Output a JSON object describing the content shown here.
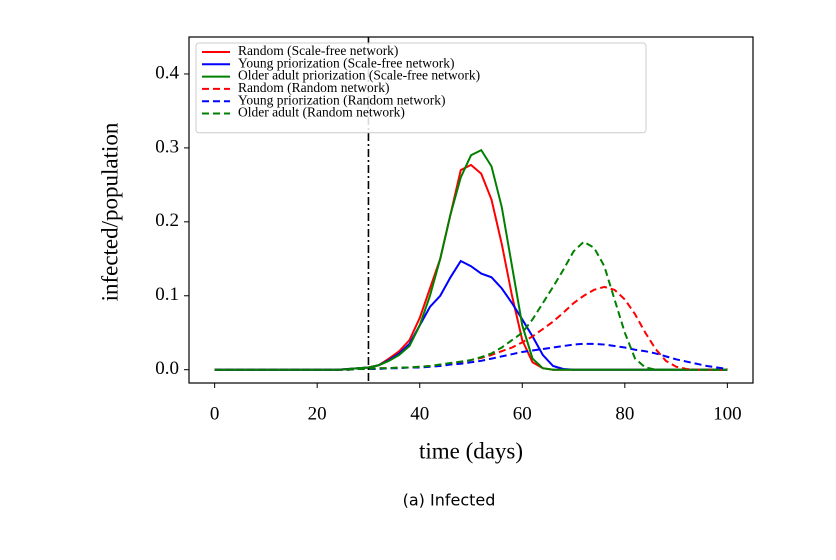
{
  "chart_data": {
    "type": "line",
    "caption": "(a) Infected",
    "xlabel": "time (days)",
    "ylabel": "infected/population",
    "x": [
      0,
      2,
      4,
      6,
      8,
      10,
      12,
      14,
      16,
      18,
      20,
      22,
      24,
      26,
      28,
      30,
      32,
      34,
      36,
      38,
      40,
      42,
      44,
      46,
      48,
      50,
      52,
      54,
      56,
      58,
      60,
      62,
      64,
      66,
      68,
      70,
      72,
      74,
      76,
      78,
      80,
      82,
      84,
      86,
      88,
      90,
      92,
      94,
      96,
      98,
      100
    ],
    "series": [
      {
        "name": "Random (Scale-free network)",
        "color": "#ff0000",
        "linestyle": "solid",
        "values": [
          0,
          0,
          0,
          0,
          0,
          0,
          0,
          0,
          0,
          0,
          0,
          0,
          0,
          0.001,
          0.002,
          0.003,
          0.006,
          0.015,
          0.025,
          0.04,
          0.07,
          0.11,
          0.15,
          0.21,
          0.27,
          0.277,
          0.265,
          0.23,
          0.17,
          0.1,
          0.04,
          0.01,
          0.002,
          0,
          0,
          0,
          0,
          0,
          0,
          0,
          0,
          0,
          0,
          0,
          0,
          0,
          0,
          0,
          0,
          0,
          0
        ]
      },
      {
        "name": "Young priorization (Scale-free network)",
        "color": "#0000ff",
        "linestyle": "solid",
        "values": [
          0,
          0,
          0,
          0,
          0,
          0,
          0,
          0,
          0,
          0,
          0,
          0,
          0,
          0.001,
          0.002,
          0.003,
          0.006,
          0.013,
          0.022,
          0.035,
          0.06,
          0.085,
          0.1,
          0.125,
          0.147,
          0.14,
          0.13,
          0.125,
          0.11,
          0.09,
          0.068,
          0.045,
          0.02,
          0.005,
          0.001,
          0,
          0,
          0,
          0,
          0,
          0,
          0,
          0,
          0,
          0,
          0,
          0,
          0,
          0,
          0,
          0
        ]
      },
      {
        "name": "Older adult priorization (Scale-free network)",
        "color": "#008000",
        "linestyle": "solid",
        "values": [
          0,
          0,
          0,
          0,
          0,
          0,
          0,
          0,
          0,
          0,
          0,
          0,
          0,
          0.001,
          0.002,
          0.003,
          0.006,
          0.012,
          0.02,
          0.032,
          0.06,
          0.1,
          0.15,
          0.21,
          0.26,
          0.29,
          0.297,
          0.275,
          0.22,
          0.14,
          0.06,
          0.015,
          0.002,
          0,
          0,
          0,
          0,
          0,
          0,
          0,
          0,
          0,
          0,
          0,
          0,
          0,
          0,
          0,
          0,
          0,
          0
        ]
      },
      {
        "name": "Random (Random network)",
        "color": "#ff0000",
        "linestyle": "dashed",
        "values": [
          0,
          0,
          0,
          0,
          0,
          0,
          0,
          0,
          0,
          0,
          0,
          0,
          0,
          0,
          0.001,
          0.001,
          0.002,
          0.002,
          0.003,
          0.003,
          0.004,
          0.005,
          0.006,
          0.008,
          0.01,
          0.013,
          0.016,
          0.02,
          0.025,
          0.03,
          0.037,
          0.045,
          0.055,
          0.065,
          0.077,
          0.09,
          0.1,
          0.108,
          0.112,
          0.108,
          0.095,
          0.075,
          0.05,
          0.028,
          0.012,
          0.004,
          0.001,
          0,
          0,
          0,
          0
        ]
      },
      {
        "name": "Young priorization (Random network)",
        "color": "#0000ff",
        "linestyle": "dashed",
        "values": [
          0,
          0,
          0,
          0,
          0,
          0,
          0,
          0,
          0,
          0,
          0,
          0,
          0,
          0,
          0.001,
          0.001,
          0.001,
          0.002,
          0.002,
          0.003,
          0.003,
          0.004,
          0.005,
          0.007,
          0.008,
          0.01,
          0.012,
          0.015,
          0.018,
          0.021,
          0.024,
          0.026,
          0.028,
          0.03,
          0.032,
          0.034,
          0.035,
          0.035,
          0.034,
          0.032,
          0.03,
          0.027,
          0.025,
          0.022,
          0.018,
          0.014,
          0.011,
          0.008,
          0.005,
          0.003,
          0.001
        ]
      },
      {
        "name": "Older adult (Random network)",
        "color": "#008000",
        "linestyle": "dashed",
        "values": [
          0,
          0,
          0,
          0,
          0,
          0,
          0,
          0,
          0,
          0,
          0,
          0,
          0,
          0,
          0.001,
          0.001,
          0.002,
          0.002,
          0.003,
          0.003,
          0.004,
          0.005,
          0.007,
          0.009,
          0.011,
          0.013,
          0.017,
          0.022,
          0.03,
          0.04,
          0.05,
          0.068,
          0.09,
          0.112,
          0.135,
          0.16,
          0.173,
          0.165,
          0.14,
          0.095,
          0.05,
          0.015,
          0.003,
          0,
          0,
          0,
          0,
          0,
          0,
          0,
          0
        ]
      }
    ],
    "vline": 30,
    "xlim": [
      -5,
      105
    ],
    "ylim": [
      -0.018,
      0.45
    ],
    "xticks": [
      0,
      20,
      40,
      60,
      80,
      100
    ],
    "yticks": [
      {
        "value": 0,
        "label": "0.0"
      },
      0.1,
      0.2,
      0.3,
      0.4
    ],
    "legend": "upper-left"
  }
}
